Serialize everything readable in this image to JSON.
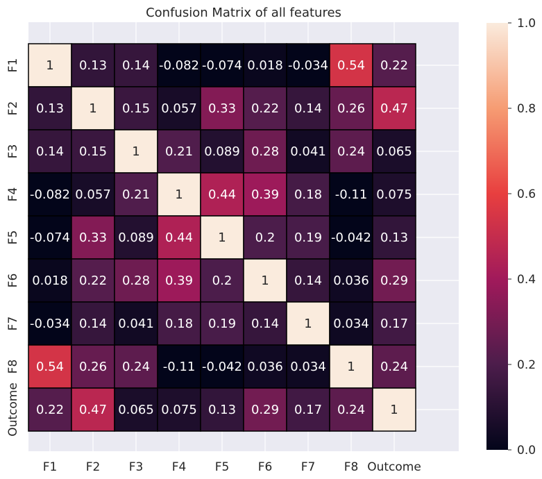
{
  "chart_data": {
    "type": "heatmap",
    "title": "Confusion Matrix of all features",
    "xlabel": "",
    "ylabel": "",
    "x_categories": [
      "F1",
      "F2",
      "F3",
      "F4",
      "F5",
      "F6",
      "F7",
      "F8",
      "Outcome"
    ],
    "y_categories": [
      "F1",
      "F2",
      "F3",
      "F4",
      "F5",
      "F6",
      "F7",
      "F8",
      "Outcome"
    ],
    "values": [
      [
        1,
        0.13,
        0.14,
        -0.082,
        -0.074,
        0.018,
        -0.034,
        0.54,
        0.22
      ],
      [
        0.13,
        1,
        0.15,
        0.057,
        0.33,
        0.22,
        0.14,
        0.26,
        0.47
      ],
      [
        0.14,
        0.15,
        1,
        0.21,
        0.089,
        0.28,
        0.041,
        0.24,
        0.065
      ],
      [
        -0.082,
        0.057,
        0.21,
        1,
        0.44,
        0.39,
        0.18,
        -0.11,
        0.075
      ],
      [
        -0.074,
        0.33,
        0.089,
        0.44,
        1,
        0.2,
        0.19,
        -0.042,
        0.13
      ],
      [
        0.018,
        0.22,
        0.28,
        0.39,
        0.2,
        1,
        0.14,
        0.036,
        0.29
      ],
      [
        -0.034,
        0.14,
        0.041,
        0.18,
        0.19,
        0.14,
        1,
        0.034,
        0.17
      ],
      [
        0.54,
        0.26,
        0.24,
        -0.11,
        -0.042,
        0.036,
        0.034,
        1,
        0.24
      ],
      [
        0.22,
        0.47,
        0.065,
        0.075,
        0.13,
        0.29,
        0.17,
        0.24,
        1
      ]
    ],
    "cell_labels": [
      [
        "1",
        "0.13",
        "0.14",
        "-0.082",
        "-0.074",
        "0.018",
        "-0.034",
        "0.54",
        "0.22"
      ],
      [
        "0.13",
        "1",
        "0.15",
        "0.057",
        "0.33",
        "0.22",
        "0.14",
        "0.26",
        "0.47"
      ],
      [
        "0.14",
        "0.15",
        "1",
        "0.21",
        "0.089",
        "0.28",
        "0.041",
        "0.24",
        "0.065"
      ],
      [
        "-0.082",
        "0.057",
        "0.21",
        "1",
        "0.44",
        "0.39",
        "0.18",
        "-0.11",
        "0.075"
      ],
      [
        "-0.074",
        "0.33",
        "0.089",
        "0.44",
        "1",
        "0.2",
        "0.19",
        "-0.042",
        "0.13"
      ],
      [
        "0.018",
        "0.22",
        "0.28",
        "0.39",
        "0.2",
        "1",
        "0.14",
        "0.036",
        "0.29"
      ],
      [
        "-0.034",
        "0.14",
        "0.041",
        "0.18",
        "0.19",
        "0.14",
        "1",
        "0.034",
        "0.17"
      ],
      [
        "0.54",
        "0.26",
        "0.24",
        "-0.11",
        "-0.042",
        "0.036",
        "0.034",
        "1",
        "0.24"
      ],
      [
        "0.22",
        "0.47",
        "0.065",
        "0.075",
        "0.13",
        "0.29",
        "0.17",
        "0.24",
        "1"
      ]
    ],
    "colorbar": {
      "min": 0.0,
      "max": 1.0,
      "ticks": [
        0.0,
        0.2,
        0.4,
        0.6,
        0.8,
        1.0
      ],
      "tick_labels": [
        "0.0",
        "0.2",
        "0.4",
        "0.6",
        "0.8",
        "1.0"
      ],
      "colormap": "rocket",
      "color_stops": [
        "#03051a",
        "#4c1d4b",
        "#a11a5b",
        "#e83f3f",
        "#f69c73",
        "#faebdd"
      ]
    },
    "grid": true,
    "colors": {
      "plot_background": "#eaeaf2",
      "grid_line": "#ffffff",
      "cell_border": "#000000",
      "dark_text": "#262626",
      "light_text": "#ffffff"
    }
  }
}
